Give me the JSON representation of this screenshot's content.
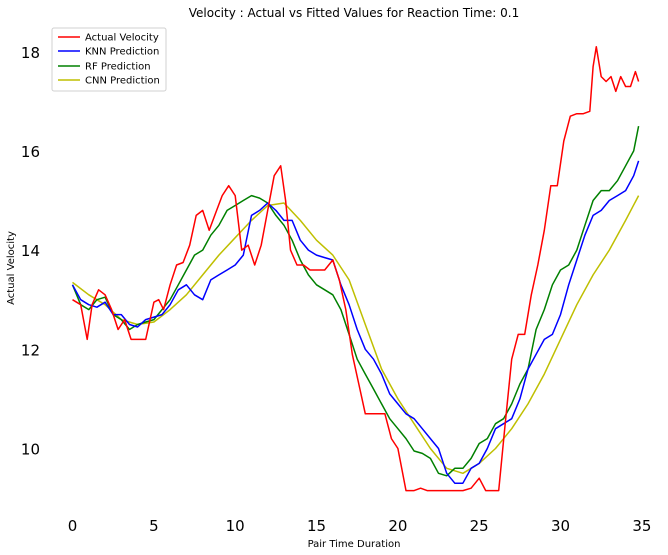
{
  "chart_data": {
    "type": "line",
    "title": "Velocity : Actual vs Fitted Values for Reaction Time: 0.1",
    "xlabel": "Pair Time Duration",
    "ylabel": "Actual Velocity",
    "xlim": [
      -2,
      35.5
    ],
    "ylim": [
      8.8,
      18.6
    ],
    "xticks": [
      0,
      5,
      10,
      15,
      20,
      25,
      30,
      35
    ],
    "yticks": [
      10,
      12,
      14,
      16,
      18
    ],
    "grid": false,
    "legend_position": "top-left",
    "series": [
      {
        "name": "Actual Velocity",
        "color": "#ff0000",
        "x": [
          0,
          0.5,
          0.9,
          1.2,
          1.6,
          2.0,
          2.4,
          2.8,
          3.2,
          3.6,
          4.0,
          4.5,
          5.0,
          5.3,
          5.6,
          6.0,
          6.4,
          6.8,
          7.2,
          7.6,
          8.0,
          8.4,
          8.8,
          9.2,
          9.6,
          10.0,
          10.4,
          10.8,
          11.2,
          11.6,
          12.0,
          12.4,
          12.8,
          13.1,
          13.4,
          13.8,
          14.2,
          14.6,
          15.0,
          15.5,
          16.0,
          16.4,
          16.8,
          17.2,
          17.6,
          18.0,
          18.4,
          18.8,
          19.2,
          19.6,
          20.0,
          20.5,
          21.0,
          21.4,
          21.8,
          22.3,
          23.0,
          23.5,
          24.0,
          24.5,
          25.0,
          25.4,
          25.8,
          26.2,
          26.6,
          27.0,
          27.4,
          27.8,
          28.2,
          28.6,
          29.0,
          29.4,
          29.8,
          30.2,
          30.6,
          31.0,
          31.4,
          31.8,
          32.0,
          32.2,
          32.5,
          32.8,
          33.1,
          33.4,
          33.7,
          34.0,
          34.3,
          34.6,
          34.8
        ],
        "y": [
          13.0,
          12.9,
          12.2,
          12.9,
          13.2,
          13.1,
          12.8,
          12.4,
          12.6,
          12.2,
          12.2,
          12.2,
          12.95,
          13.0,
          12.8,
          13.3,
          13.7,
          13.75,
          14.1,
          14.7,
          14.8,
          14.4,
          14.75,
          15.1,
          15.3,
          15.1,
          14.0,
          14.1,
          13.7,
          14.1,
          14.8,
          15.5,
          15.7,
          15.0,
          14.0,
          13.7,
          13.7,
          13.6,
          13.6,
          13.6,
          13.8,
          13.4,
          12.8,
          11.9,
          11.3,
          10.7,
          10.7,
          10.7,
          10.7,
          10.2,
          10.0,
          9.15,
          9.15,
          9.2,
          9.15,
          9.15,
          9.15,
          9.15,
          9.15,
          9.2,
          9.4,
          9.15,
          9.15,
          9.15,
          10.5,
          11.8,
          12.3,
          12.3,
          13.1,
          13.7,
          14.4,
          15.3,
          15.3,
          16.2,
          16.7,
          16.75,
          16.75,
          16.8,
          17.7,
          18.1,
          17.5,
          17.4,
          17.5,
          17.2,
          17.5,
          17.3,
          17.3,
          17.6,
          17.4
        ]
      },
      {
        "name": "KNN  Prediction",
        "color": "#0000ff",
        "x": [
          0,
          0.5,
          1.0,
          1.5,
          2.0,
          2.5,
          3.0,
          3.5,
          4.0,
          4.5,
          5.0,
          5.5,
          6.0,
          6.5,
          7.0,
          7.5,
          8.0,
          8.5,
          9.0,
          9.5,
          10.0,
          10.5,
          11.0,
          11.5,
          12.0,
          12.5,
          13.0,
          13.5,
          14.0,
          14.5,
          15.0,
          15.5,
          16.0,
          16.5,
          17.0,
          17.5,
          18.0,
          18.5,
          19.0,
          19.5,
          20.0,
          20.5,
          21.0,
          21.5,
          22.0,
          22.5,
          23.0,
          23.5,
          24.0,
          24.5,
          25.0,
          25.5,
          26.0,
          26.5,
          27.0,
          27.5,
          28.0,
          28.5,
          29.0,
          29.5,
          30.0,
          30.5,
          31.0,
          31.5,
          32.0,
          32.5,
          33.0,
          33.5,
          34.0,
          34.5,
          34.8
        ],
        "y": [
          13.3,
          13.0,
          12.9,
          12.85,
          12.95,
          12.7,
          12.7,
          12.5,
          12.45,
          12.6,
          12.65,
          12.7,
          12.9,
          13.2,
          13.3,
          13.1,
          13.0,
          13.4,
          13.5,
          13.6,
          13.7,
          13.9,
          14.7,
          14.8,
          14.95,
          14.8,
          14.6,
          14.6,
          14.2,
          14.0,
          13.9,
          13.85,
          13.8,
          13.3,
          12.9,
          12.4,
          12.0,
          11.8,
          11.5,
          11.1,
          10.9,
          10.7,
          10.6,
          10.4,
          10.2,
          10.0,
          9.5,
          9.3,
          9.3,
          9.6,
          9.7,
          10.0,
          10.4,
          10.5,
          10.6,
          11.0,
          11.6,
          11.9,
          12.2,
          12.3,
          12.7,
          13.3,
          13.8,
          14.3,
          14.7,
          14.8,
          15.0,
          15.1,
          15.2,
          15.5,
          15.8
        ]
      },
      {
        "name": "RF  Prediction",
        "color": "#008000",
        "x": [
          0,
          0.5,
          1.0,
          1.5,
          2.0,
          2.5,
          3.0,
          3.5,
          4.0,
          4.5,
          5.0,
          5.5,
          6.0,
          6.5,
          7.0,
          7.5,
          8.0,
          8.5,
          9.0,
          9.5,
          10.0,
          10.5,
          11.0,
          11.5,
          12.0,
          12.5,
          13.0,
          13.5,
          14.0,
          14.5,
          15.0,
          15.5,
          16.0,
          16.5,
          17.0,
          17.5,
          18.0,
          18.5,
          19.0,
          19.5,
          20.0,
          20.5,
          21.0,
          21.5,
          22.0,
          22.5,
          23.0,
          23.5,
          24.0,
          24.5,
          25.0,
          25.5,
          26.0,
          26.5,
          27.0,
          27.5,
          28.0,
          28.5,
          29.0,
          29.5,
          30.0,
          30.5,
          31.0,
          31.5,
          32.0,
          32.5,
          33.0,
          33.5,
          34.0,
          34.5,
          34.8
        ],
        "y": [
          13.3,
          12.9,
          12.8,
          13.0,
          13.05,
          12.7,
          12.6,
          12.4,
          12.5,
          12.55,
          12.6,
          12.8,
          13.0,
          13.3,
          13.6,
          13.9,
          14.0,
          14.3,
          14.5,
          14.8,
          14.9,
          15.0,
          15.1,
          15.05,
          14.95,
          14.7,
          14.5,
          14.2,
          13.8,
          13.5,
          13.3,
          13.2,
          13.1,
          12.8,
          12.3,
          11.8,
          11.5,
          11.2,
          10.9,
          10.6,
          10.4,
          10.2,
          9.95,
          9.9,
          9.8,
          9.5,
          9.45,
          9.6,
          9.6,
          9.8,
          10.1,
          10.2,
          10.5,
          10.6,
          10.9,
          11.3,
          11.6,
          12.4,
          12.8,
          13.3,
          13.6,
          13.7,
          14.0,
          14.5,
          15.0,
          15.2,
          15.2,
          15.4,
          15.7,
          16.0,
          16.5
        ]
      },
      {
        "name": "CNN  Prediction",
        "color": "#bfbf00",
        "x": [
          0,
          1,
          2,
          3,
          4,
          5,
          6,
          7,
          8,
          9,
          10,
          11,
          12,
          13,
          14,
          15,
          16,
          17,
          18,
          19,
          20,
          21,
          22,
          23,
          24,
          25,
          26,
          27,
          28,
          29,
          30,
          31,
          32,
          33,
          34,
          34.8
        ],
        "y": [
          13.35,
          13.1,
          12.9,
          12.6,
          12.5,
          12.55,
          12.8,
          13.1,
          13.5,
          13.9,
          14.25,
          14.6,
          14.9,
          14.95,
          14.6,
          14.2,
          13.9,
          13.4,
          12.5,
          11.6,
          11.0,
          10.5,
          10.0,
          9.6,
          9.5,
          9.7,
          10.0,
          10.4,
          10.9,
          11.5,
          12.2,
          12.9,
          13.5,
          14.0,
          14.6,
          15.1
        ]
      }
    ]
  }
}
